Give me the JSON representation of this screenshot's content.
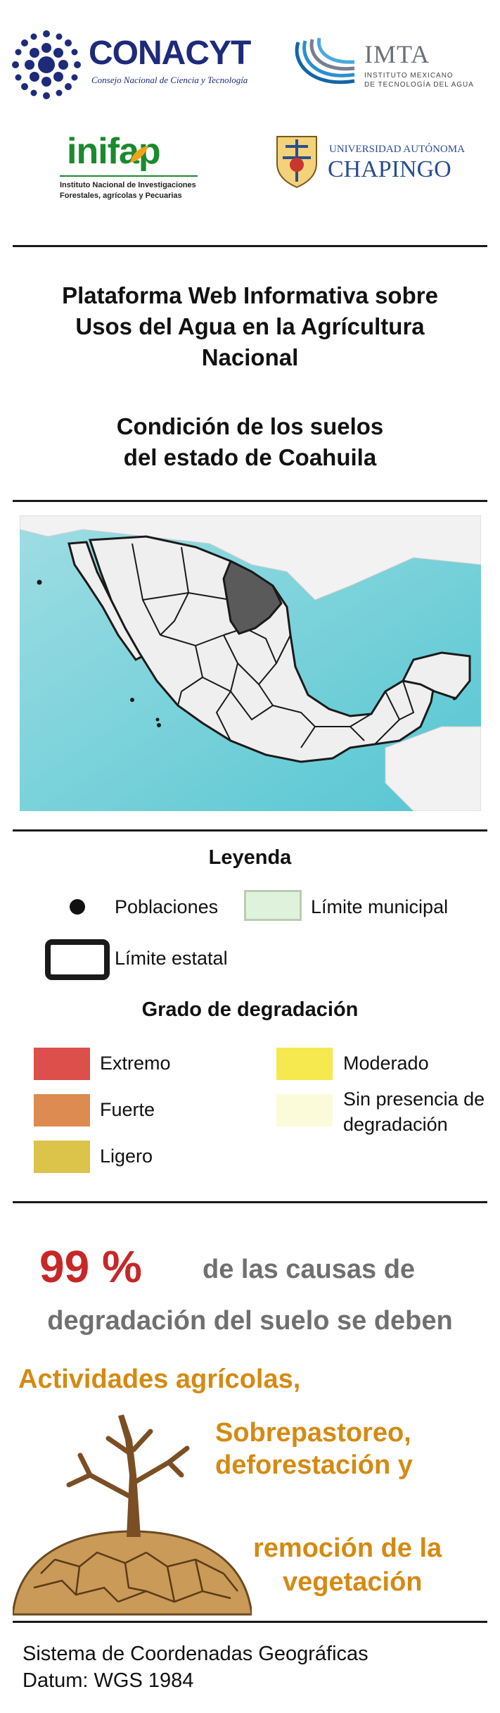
{
  "logos": {
    "conacyt_name": "CONACYT",
    "conacyt_sub": "Consejo Nacional de Ciencia y Tecnología",
    "imta_name": "IMTA",
    "imta_sub1": "INSTITUTO MEXICANO",
    "imta_sub2": "DE TECNOLOGÍA DEL AGUA",
    "inifap_name": "inifap",
    "inifap_sub1": "Instituto Nacional de Investigaciones",
    "inifap_sub2": "Forestales, agrícolas y Pecuarias",
    "chapingo_top": "UNIVERSIDAD AUTÓNOMA",
    "chapingo_name": "CHAPINGO"
  },
  "title": {
    "line1": "Plataforma Web Informativa sobre",
    "line2": "Usos del Agua en la Agrícultura",
    "line3": "Nacional",
    "subtitle1": "Condición de los suelos",
    "subtitle2": "del estado de Coahuila"
  },
  "legend": {
    "heading": "Leyenda",
    "poblaciones": "Poblaciones",
    "limite_municipal": "Límite municipal",
    "limite_estatal": "Límite estatal",
    "degradation_heading": "Grado de degradación",
    "extremo": "Extremo",
    "fuerte": "Fuerte",
    "ligero": "Ligero",
    "moderado": "Moderado",
    "sin_presencia1": "Sin presencia de",
    "sin_presencia2": "degradación"
  },
  "colors": {
    "extremo": "#dc4f4a",
    "fuerte": "#dd8b50",
    "ligero": "#dcc34a",
    "moderado": "#f6e84f",
    "sin_presencia": "#fcfbd9",
    "municipal_fill": "#dff2db",
    "municipal_border": "#b9cdb3",
    "percent_red": "#c62828",
    "ocean": "#6fcfd8",
    "coahuila": "#5a5a5a"
  },
  "stats": {
    "percent": "99 %",
    "text1": "de las causas  de",
    "text2": "degradación del suelo se deben",
    "cause1": "Actividades agrícolas,",
    "cause2a": "Sobrepastoreo,",
    "cause2b": "deforestación y",
    "cause3a": "remoción de la",
    "cause3b": "vegetación"
  },
  "footer": {
    "line1": "Sistema de Coordenadas Geográficas",
    "line2": "Datum: WGS 1984"
  }
}
